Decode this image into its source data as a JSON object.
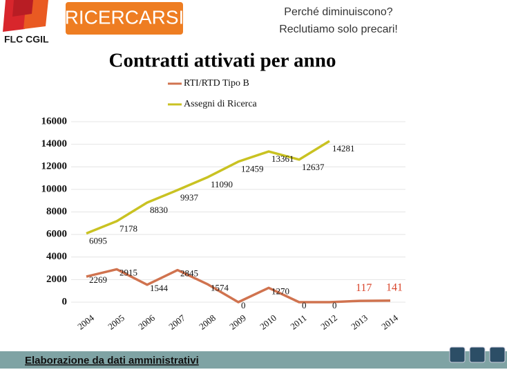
{
  "header": {
    "logo": "FLC CGIL",
    "brand": "RICERCARSI",
    "subtitle_lines": [
      "Perché diminuiscono?",
      "Reclutiamo solo precari!"
    ]
  },
  "footer": {
    "note": "Elaborazione da dati amministrativi"
  },
  "chart_data": {
    "type": "line",
    "title": "Contratti attivati per anno",
    "categories": [
      "2004",
      "2005",
      "2006",
      "2007",
      "2008",
      "2009",
      "2010",
      "2011",
      "2012",
      "2013",
      "2014"
    ],
    "series": [
      {
        "name": "RTI/RTD Tipo B",
        "color": "#d0734f",
        "values": [
          2269,
          2915,
          1544,
          2845,
          1574,
          0,
          1270,
          0,
          0,
          117,
          141
        ]
      },
      {
        "name": "Assegni di Ricerca",
        "color": "#c9c222",
        "values": [
          6095,
          7178,
          8830,
          9937,
          11090,
          12459,
          13361,
          12637,
          14281,
          null,
          null
        ]
      }
    ],
    "ylim": [
      0,
      16000
    ],
    "yticks": [
      0,
      2000,
      4000,
      6000,
      8000,
      10000,
      12000,
      14000,
      16000
    ],
    "grid": true,
    "legend": "top",
    "highlight_label_color": "#d9452b"
  }
}
